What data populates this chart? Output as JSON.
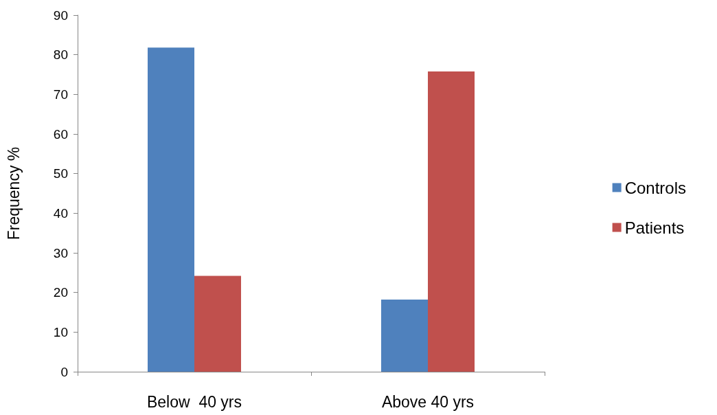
{
  "chart_data": {
    "type": "bar",
    "ylabel": "Frequency %",
    "categories": [
      "Below  40 yrs",
      "Above 40 yrs"
    ],
    "series": [
      {
        "name": "Controls",
        "color": "#4f81bd",
        "values": [
          81.8,
          18.2
        ]
      },
      {
        "name": "Patients",
        "color": "#c0504d",
        "values": [
          24.2,
          75.8
        ]
      }
    ],
    "ylim": [
      0,
      90
    ],
    "yticks": [
      0,
      10,
      20,
      30,
      40,
      50,
      60,
      70,
      80,
      90
    ],
    "grid": false,
    "legend": "right"
  }
}
